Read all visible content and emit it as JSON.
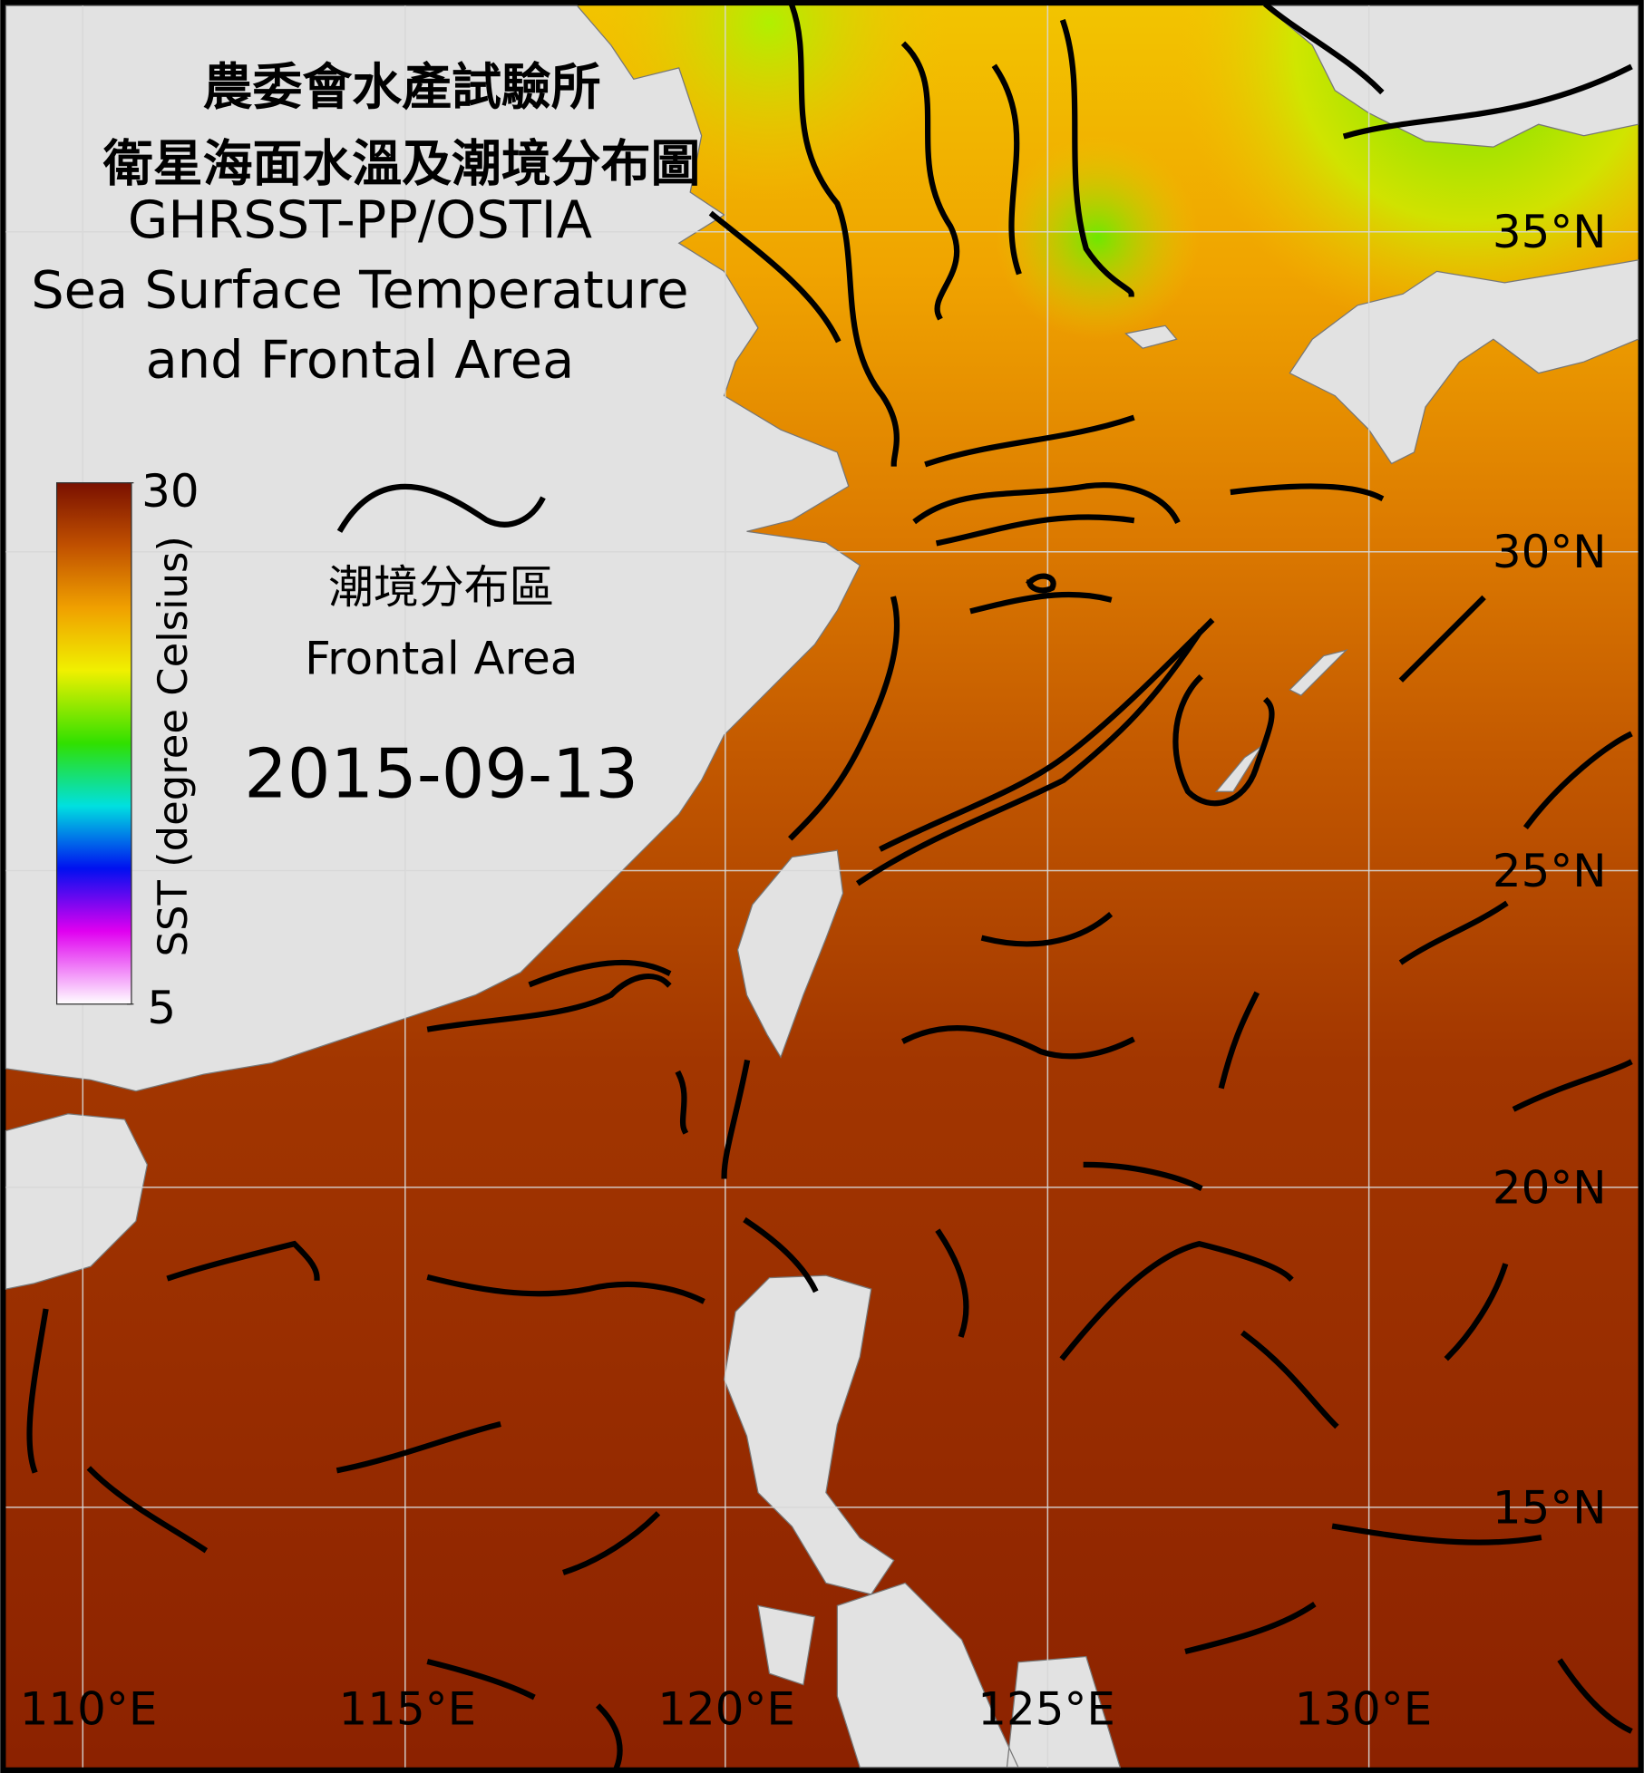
{
  "title": {
    "org": "農委會水產試驗所",
    "name_zh": "衛星海面水溫及潮境分布圖",
    "product": "GHRSST-PP/OSTIA",
    "name_en_1": "Sea Surface Temperature",
    "name_en_2": "and Frontal Area"
  },
  "colorbar": {
    "max": 30,
    "min": 5,
    "label": "SST (degree Celsius)"
  },
  "legend": {
    "label_zh": "潮境分布區",
    "label_en": "Frontal Area"
  },
  "date": "2015-09-13",
  "lon_labels": [
    "110°E",
    "115°E",
    "120°E",
    "125°E",
    "130°E"
  ],
  "lat_labels": [
    "35°N",
    "30°N",
    "25°N",
    "20°N",
    "15°N"
  ]
}
